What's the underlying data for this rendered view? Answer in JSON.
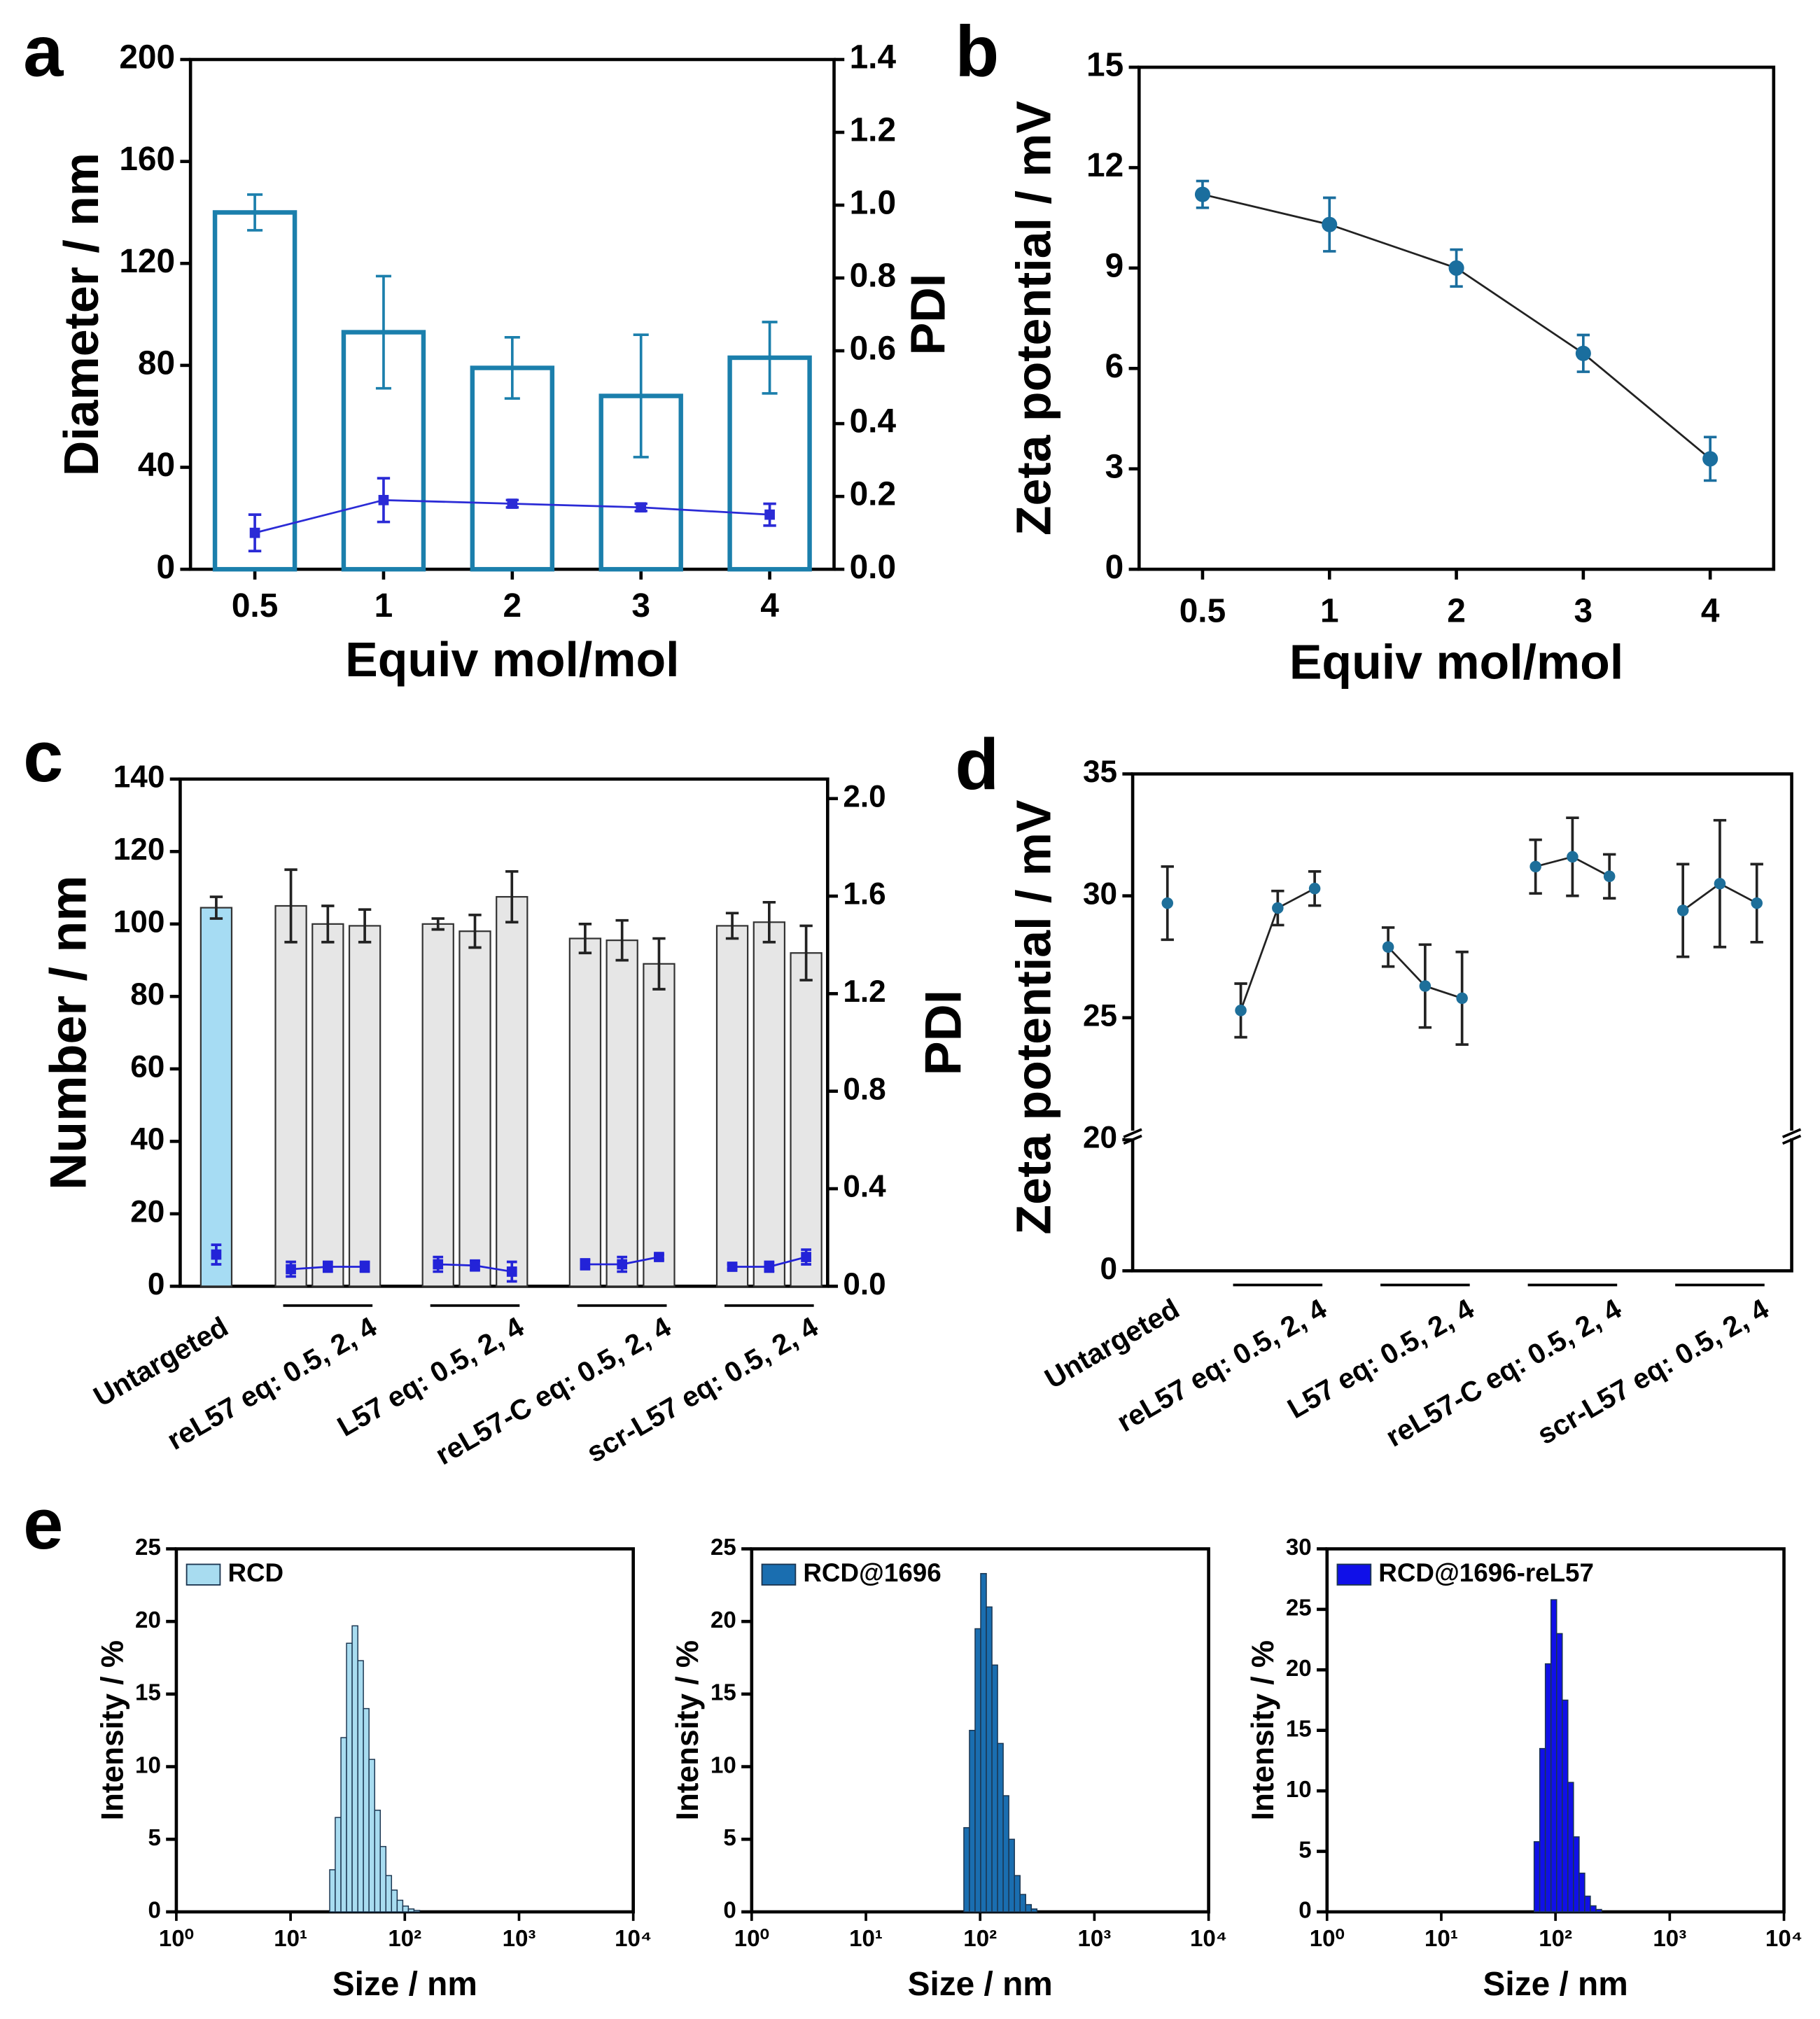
{
  "chart_data": [
    {
      "type": "bar_line",
      "label": "a",
      "xlabel": "Equiv mol/mol",
      "ylabel": "Diameter / nm",
      "y2label": "PDI",
      "categories": [
        "0.5",
        "1",
        "2",
        "3",
        "4"
      ],
      "ylim": [
        0,
        200
      ],
      "yticks": [
        0,
        40,
        80,
        120,
        160,
        200
      ],
      "y2lim": [
        0,
        1.4
      ],
      "y2ticks": [
        {
          "value": 0,
          "label": "0.0"
        },
        0.2,
        0.4,
        0.6,
        0.8,
        {
          "value": 1,
          "label": "1.0"
        },
        1.2,
        1.4
      ],
      "series": [
        {
          "color": "#1b7fac",
          "values": [
            140,
            93,
            79,
            68,
            83
          ],
          "errors": [
            7,
            22,
            12,
            24,
            14
          ]
        },
        {
          "axis": "y2",
          "color": "#2b2bd6",
          "values": [
            0.1,
            0.19,
            0.18,
            0.17,
            0.15
          ],
          "errors": [
            0.05,
            0.06,
            0.01,
            0.01,
            0.03
          ]
        }
      ]
    },
    {
      "type": "line",
      "label": "b",
      "xlabel": "Equiv mol/mol",
      "ylabel": "Zeta potential / mV",
      "categories": [
        "0.5",
        "1",
        "2",
        "3",
        "4"
      ],
      "ylim": [
        0,
        15
      ],
      "yticks": [
        0,
        3,
        6,
        9,
        12,
        15
      ],
      "color": "#1a6e9e",
      "values": [
        11.2,
        10.3,
        9.0,
        6.45,
        3.3
      ],
      "errors": [
        0.4,
        0.8,
        0.55,
        0.55,
        0.65
      ]
    },
    {
      "type": "grouped_bar_line",
      "label": "c",
      "ylabel": "Number / nm",
      "y2label": "PDI",
      "ylim": [
        0,
        140
      ],
      "yticks": [
        0,
        20,
        40,
        60,
        80,
        100,
        120,
        140
      ],
      "y2lim": [
        0,
        2.08
      ],
      "y2ticks": [
        {
          "value": 0,
          "label": "0.0"
        },
        0.4,
        0.8,
        1.2,
        1.6,
        {
          "value": 2,
          "label": "2.0"
        }
      ],
      "pdi_color": "#2323d8",
      "groups": [
        {
          "name": "Untargeted",
          "color": "#a6dcf3",
          "values": [
            104.5
          ],
          "errors": [
            3
          ],
          "pdi": [
            0.13
          ],
          "pdi_errors": [
            0.04
          ]
        },
        {
          "name": "reL57 eq: 0.5, 2, 4",
          "color": "#e6e6e6",
          "values": [
            105,
            100,
            99.5
          ],
          "errors": [
            10,
            5,
            4.5
          ],
          "pdi": [
            0.07,
            0.08,
            0.08
          ],
          "pdi_errors": [
            0.03,
            0.02,
            0.02
          ]
        },
        {
          "name": "L57 eq: 0.5, 2, 4",
          "color": "#e6e6e6",
          "values": [
            100,
            98,
            107.5
          ],
          "errors": [
            1.5,
            4.5,
            7
          ],
          "pdi": [
            0.09,
            0.085,
            0.06
          ],
          "pdi_errors": [
            0.03,
            0.02,
            0.04
          ]
        },
        {
          "name": "reL57-C eq: 0.5, 2, 4",
          "color": "#e6e6e6",
          "values": [
            96,
            95.5,
            89
          ],
          "errors": [
            4,
            5.5,
            7
          ],
          "pdi": [
            0.09,
            0.09,
            0.12
          ],
          "pdi_errors": [
            0.02,
            0.03,
            0.01
          ]
        },
        {
          "name": "scr-L57 eq: 0.5, 2, 4",
          "color": "#e6e6e6",
          "values": [
            99.5,
            100.5,
            92
          ],
          "errors": [
            3.5,
            5.5,
            7.5
          ],
          "pdi": [
            0.08,
            0.08,
            0.12
          ],
          "pdi_errors": [
            0.01,
            0.02,
            0.03
          ]
        }
      ]
    },
    {
      "type": "grouped_dot",
      "label": "d",
      "ylabel": "Zeta potential / mV",
      "ylim": [
        0,
        35
      ],
      "ybreak": 20,
      "yticks": [
        0,
        20,
        25,
        30,
        35
      ],
      "color": "#1e6f9a",
      "groups": [
        {
          "name": "Untargeted",
          "values": [
            29.7
          ],
          "errors": [
            1.5
          ]
        },
        {
          "name": "reL57 eq: 0.5, 2, 4",
          "values": [
            25.3,
            29.5,
            30.3
          ],
          "errors": [
            1.1,
            0.7,
            0.7
          ]
        },
        {
          "name": "L57 eq: 0.5, 2, 4",
          "values": [
            27.9,
            26.3,
            25.8
          ],
          "errors": [
            0.8,
            1.7,
            1.9
          ]
        },
        {
          "name": "reL57-C eq: 0.5, 2, 4",
          "values": [
            31.2,
            31.6,
            30.8
          ],
          "errors": [
            1.1,
            1.6,
            0.9
          ]
        },
        {
          "name": "scr-L57 eq: 0.5, 2, 4",
          "values": [
            29.4,
            30.5,
            29.7
          ],
          "errors": [
            1.9,
            2.6,
            1.6
          ]
        }
      ]
    },
    {
      "type": "histogram",
      "label": "e",
      "name": "RCD",
      "color": "#a8dcf0",
      "xlabel": "Size / nm",
      "ylabel": "Intensity / %",
      "log_x": true,
      "xlim": [
        1,
        10000
      ],
      "xticks": [
        {
          "value": 1,
          "label": "10⁰"
        },
        {
          "value": 10,
          "label": "10¹"
        },
        {
          "value": 100,
          "label": "10²"
        },
        {
          "value": 1000,
          "label": "10³"
        },
        {
          "value": 10000,
          "label": "10⁴"
        }
      ],
      "ylim": [
        0,
        25
      ],
      "yticks": [
        0,
        5,
        10,
        15,
        20,
        25
      ],
      "bins": [
        22,
        24.6,
        27.6,
        30.9,
        34.6,
        38.8,
        43.4,
        48.6,
        54.5,
        61,
        68.3,
        76.5,
        85.7,
        96,
        107.5,
        120.4,
        134.9
      ],
      "values": [
        2.9,
        6.5,
        12,
        18.5,
        19.7,
        17.3,
        14,
        10.5,
        7,
        4.5,
        2.5,
        1.5,
        0.8,
        0.4,
        0.2,
        0.1
      ]
    },
    {
      "type": "histogram",
      "name": "RCD@1696",
      "color": "#1a6eb0",
      "xlabel": "Size / nm",
      "ylabel": "Intensity / %",
      "log_x": true,
      "xlim": [
        1,
        10000
      ],
      "xticks": [
        {
          "value": 1,
          "label": "10⁰"
        },
        {
          "value": 10,
          "label": "10¹"
        },
        {
          "value": 100,
          "label": "10²"
        },
        {
          "value": 1000,
          "label": "10³"
        },
        {
          "value": 10000,
          "label": "10⁴"
        }
      ],
      "ylim": [
        0,
        25
      ],
      "yticks": [
        0,
        5,
        10,
        15,
        20,
        25
      ],
      "bins": [
        72,
        80.6,
        90.3,
        101.1,
        113.3,
        126.9,
        142.1,
        159.1,
        178.2,
        199.6,
        223.6,
        250.4,
        280.5,
        314.1
      ],
      "values": [
        5.8,
        12.5,
        19.5,
        23.3,
        21,
        17,
        11.6,
        8,
        5,
        2.5,
        1.2,
        0.5,
        0.2
      ]
    },
    {
      "type": "histogram",
      "name": "RCD@1696-reL57",
      "color": "#1010e8",
      "xlabel": "Size / nm",
      "ylabel": "Intensity / %",
      "log_x": true,
      "xlim": [
        1,
        10000
      ],
      "xticks": [
        {
          "value": 1,
          "label": "10⁰"
        },
        {
          "value": 10,
          "label": "10¹"
        },
        {
          "value": 100,
          "label": "10²"
        },
        {
          "value": 1000,
          "label": "10³"
        },
        {
          "value": 10000,
          "label": "10⁴"
        }
      ],
      "ylim": [
        0,
        30
      ],
      "yticks": [
        0,
        5,
        10,
        15,
        20,
        25,
        30
      ],
      "bins": [
        65,
        72.8,
        81.5,
        91.3,
        102.3,
        114.6,
        128.3,
        143.7,
        161,
        180.3,
        201.9,
        226.2,
        253.3
      ],
      "values": [
        5.8,
        13.5,
        20.5,
        25.8,
        23,
        17.5,
        10.7,
        6.2,
        3.2,
        1.3,
        0.5,
        0.2
      ]
    }
  ]
}
